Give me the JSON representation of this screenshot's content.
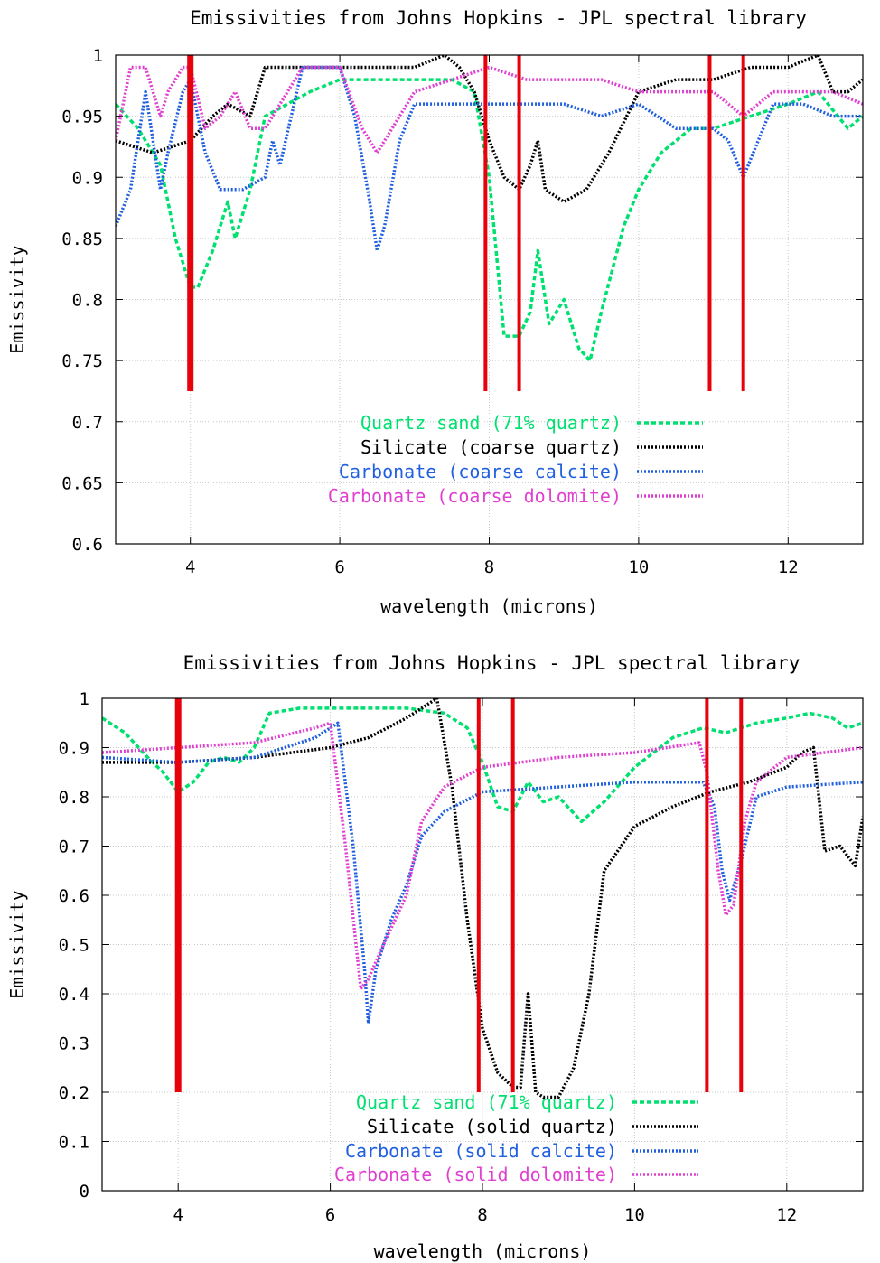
{
  "chart_data": [
    {
      "type": "line",
      "title": "Emissivities from Johns Hopkins - JPL spectral library",
      "xlabel": "wavelength (microns)",
      "ylabel": "Emissivity",
      "xlim": [
        3,
        13
      ],
      "ylim": [
        0.6,
        1.0
      ],
      "xticks": [
        4,
        6,
        8,
        10,
        12
      ],
      "xtick_labels": [
        "4",
        "6",
        "8",
        "10",
        "12"
      ],
      "yticks": [
        0.6,
        0.65,
        0.7,
        0.75,
        0.8,
        0.85,
        0.9,
        0.95,
        1.0
      ],
      "ytick_labels": [
        "0.6",
        "0.65",
        "0.7",
        "0.75",
        "0.8",
        "0.85",
        "0.9",
        "0.95",
        "1"
      ],
      "grid": true,
      "legend_position": "bottom-center",
      "band_markers": {
        "color": "#e8000b",
        "x": [
          4.0,
          7.95,
          8.4,
          10.95,
          11.4
        ],
        "bottom": 0.725,
        "top": 1.0,
        "widths": [
          "thick",
          "thin",
          "thin",
          "thin",
          "thin"
        ]
      },
      "series": [
        {
          "name": "Quartz sand (71% quartz)",
          "color": "#00e070",
          "style": "dashed",
          "x": [
            3.0,
            3.3,
            3.6,
            3.8,
            4.0,
            4.1,
            4.3,
            4.5,
            4.6,
            4.8,
            5.0,
            5.3,
            5.6,
            6.0,
            6.5,
            7.0,
            7.5,
            7.8,
            8.0,
            8.2,
            8.4,
            8.55,
            8.65,
            8.8,
            9.0,
            9.2,
            9.35,
            9.5,
            9.8,
            10.0,
            10.3,
            10.7,
            11.0,
            11.5,
            12.0,
            12.4,
            12.8,
            13.0
          ],
          "y": [
            0.96,
            0.94,
            0.91,
            0.85,
            0.81,
            0.81,
            0.84,
            0.88,
            0.85,
            0.89,
            0.95,
            0.96,
            0.97,
            0.98,
            0.98,
            0.98,
            0.98,
            0.97,
            0.9,
            0.77,
            0.77,
            0.79,
            0.84,
            0.78,
            0.8,
            0.76,
            0.75,
            0.79,
            0.86,
            0.89,
            0.92,
            0.94,
            0.94,
            0.95,
            0.96,
            0.97,
            0.94,
            0.95
          ]
        },
        {
          "name": "Silicate (coarse quartz)",
          "color": "#000000",
          "style": "dotted",
          "x": [
            3.0,
            3.5,
            4.0,
            4.3,
            4.5,
            4.8,
            5.0,
            5.5,
            6.0,
            6.5,
            7.0,
            7.4,
            7.6,
            7.8,
            8.0,
            8.2,
            8.4,
            8.55,
            8.65,
            8.75,
            9.0,
            9.3,
            9.6,
            10.0,
            10.5,
            11.0,
            11.5,
            12.0,
            12.4,
            12.6,
            12.8,
            13.0
          ],
          "y": [
            0.93,
            0.92,
            0.93,
            0.95,
            0.96,
            0.95,
            0.99,
            0.99,
            0.99,
            0.99,
            0.99,
            1.0,
            0.99,
            0.97,
            0.93,
            0.9,
            0.89,
            0.91,
            0.93,
            0.89,
            0.88,
            0.89,
            0.92,
            0.97,
            0.98,
            0.98,
            0.99,
            0.99,
            1.0,
            0.97,
            0.97,
            0.98
          ]
        },
        {
          "name": "Carbonate (coarse calcite)",
          "color": "#2060e0",
          "style": "dotted",
          "x": [
            3.0,
            3.2,
            3.4,
            3.6,
            3.7,
            3.9,
            4.0,
            4.2,
            4.4,
            4.7,
            5.0,
            5.1,
            5.2,
            5.5,
            6.0,
            6.2,
            6.4,
            6.5,
            6.6,
            6.8,
            7.0,
            7.5,
            8.0,
            8.5,
            9.0,
            9.5,
            10.0,
            10.5,
            11.0,
            11.2,
            11.4,
            11.8,
            12.2,
            12.6,
            13.0
          ],
          "y": [
            0.86,
            0.89,
            0.97,
            0.89,
            0.92,
            0.97,
            0.98,
            0.92,
            0.89,
            0.89,
            0.9,
            0.93,
            0.91,
            0.99,
            0.99,
            0.95,
            0.88,
            0.84,
            0.86,
            0.93,
            0.96,
            0.96,
            0.96,
            0.96,
            0.96,
            0.95,
            0.96,
            0.94,
            0.94,
            0.93,
            0.9,
            0.96,
            0.96,
            0.95,
            0.95
          ]
        },
        {
          "name": "Carbonate (coarse dolomite)",
          "color": "#e040d0",
          "style": "dotted",
          "x": [
            3.0,
            3.2,
            3.4,
            3.6,
            3.7,
            3.9,
            4.0,
            4.2,
            4.4,
            4.6,
            4.8,
            5.0,
            5.5,
            6.0,
            6.3,
            6.5,
            6.8,
            7.0,
            7.5,
            8.0,
            8.5,
            9.0,
            9.5,
            10.0,
            10.5,
            11.0,
            11.2,
            11.4,
            11.8,
            12.2,
            12.6,
            13.0
          ],
          "y": [
            0.93,
            0.99,
            0.99,
            0.95,
            0.97,
            0.99,
            0.99,
            0.94,
            0.95,
            0.97,
            0.94,
            0.94,
            0.99,
            0.99,
            0.94,
            0.92,
            0.95,
            0.97,
            0.98,
            0.99,
            0.98,
            0.98,
            0.98,
            0.97,
            0.97,
            0.97,
            0.96,
            0.95,
            0.97,
            0.97,
            0.97,
            0.96
          ]
        }
      ]
    },
    {
      "type": "line",
      "title": "Emissivities from Johns Hopkins - JPL spectral library",
      "xlabel": "wavelength (microns)",
      "ylabel": "Emissivity",
      "xlim": [
        3,
        13
      ],
      "ylim": [
        0,
        1.0
      ],
      "xticks": [
        4,
        6,
        8,
        10,
        12
      ],
      "xtick_labels": [
        "4",
        "6",
        "8",
        "10",
        "12"
      ],
      "yticks": [
        0,
        0.1,
        0.2,
        0.3,
        0.4,
        0.5,
        0.6,
        0.7,
        0.8,
        0.9,
        1.0
      ],
      "ytick_labels": [
        "0",
        "0.1",
        "0.2",
        "0.3",
        "0.4",
        "0.5",
        "0.6",
        "0.7",
        "0.8",
        "0.9",
        "1"
      ],
      "grid": true,
      "legend_position": "bottom-center",
      "band_markers": {
        "color": "#e8000b",
        "x": [
          4.0,
          7.95,
          8.4,
          10.95,
          11.4
        ],
        "bottom": 0.2,
        "top": 1.0,
        "widths": [
          "thick",
          "thin",
          "thin",
          "thin",
          "thin"
        ]
      },
      "series": [
        {
          "name": "Quartz sand (71% quartz)",
          "color": "#00e070",
          "style": "dashed",
          "x": [
            3.0,
            3.3,
            3.6,
            3.8,
            4.0,
            4.2,
            4.4,
            4.6,
            4.8,
            5.0,
            5.2,
            5.6,
            6.0,
            6.5,
            7.0,
            7.5,
            7.8,
            8.0,
            8.2,
            8.4,
            8.6,
            8.8,
            9.0,
            9.3,
            9.6,
            10.0,
            10.5,
            10.9,
            11.2,
            11.6,
            12.0,
            12.3,
            12.6,
            12.8,
            13.0
          ],
          "y": [
            0.96,
            0.93,
            0.88,
            0.85,
            0.81,
            0.83,
            0.87,
            0.88,
            0.87,
            0.9,
            0.97,
            0.98,
            0.98,
            0.98,
            0.98,
            0.97,
            0.94,
            0.87,
            0.78,
            0.77,
            0.83,
            0.79,
            0.8,
            0.75,
            0.79,
            0.86,
            0.92,
            0.94,
            0.93,
            0.95,
            0.96,
            0.97,
            0.96,
            0.94,
            0.95
          ]
        },
        {
          "name": "Silicate (solid quartz)",
          "color": "#000000",
          "style": "dotted",
          "x": [
            3.0,
            4.0,
            5.0,
            6.0,
            6.5,
            7.0,
            7.3,
            7.4,
            7.6,
            7.8,
            8.0,
            8.2,
            8.4,
            8.5,
            8.6,
            8.7,
            8.8,
            9.0,
            9.2,
            9.4,
            9.6,
            10.0,
            10.5,
            11.0,
            11.5,
            12.0,
            12.2,
            12.35,
            12.5,
            12.7,
            12.9,
            13.0
          ],
          "y": [
            0.87,
            0.87,
            0.88,
            0.9,
            0.92,
            0.96,
            0.99,
            1.0,
            0.82,
            0.55,
            0.33,
            0.24,
            0.21,
            0.21,
            0.4,
            0.2,
            0.19,
            0.19,
            0.25,
            0.4,
            0.65,
            0.74,
            0.78,
            0.81,
            0.83,
            0.86,
            0.89,
            0.9,
            0.69,
            0.7,
            0.66,
            0.76
          ]
        },
        {
          "name": "Carbonate (solid calcite)",
          "color": "#2060e0",
          "style": "dotted",
          "x": [
            3.0,
            4.0,
            5.0,
            5.8,
            6.1,
            6.3,
            6.45,
            6.5,
            6.6,
            6.8,
            7.0,
            7.2,
            7.5,
            8.0,
            9.0,
            10.0,
            10.9,
            11.05,
            11.15,
            11.25,
            11.4,
            11.6,
            12.0,
            13.0
          ],
          "y": [
            0.88,
            0.87,
            0.88,
            0.92,
            0.95,
            0.7,
            0.45,
            0.34,
            0.45,
            0.55,
            0.62,
            0.72,
            0.77,
            0.81,
            0.82,
            0.83,
            0.83,
            0.78,
            0.65,
            0.59,
            0.67,
            0.8,
            0.82,
            0.83
          ]
        },
        {
          "name": "Carbonate (solid dolomite)",
          "color": "#e040d0",
          "style": "dotted",
          "x": [
            3.0,
            4.0,
            5.0,
            5.8,
            6.0,
            6.2,
            6.4,
            6.5,
            6.7,
            7.0,
            7.2,
            7.5,
            8.0,
            9.0,
            10.0,
            10.85,
            10.95,
            11.1,
            11.2,
            11.3,
            11.45,
            11.6,
            12.0,
            13.0
          ],
          "y": [
            0.89,
            0.9,
            0.91,
            0.94,
            0.95,
            0.7,
            0.41,
            0.43,
            0.5,
            0.6,
            0.75,
            0.82,
            0.86,
            0.88,
            0.89,
            0.91,
            0.85,
            0.65,
            0.56,
            0.58,
            0.75,
            0.83,
            0.88,
            0.9
          ]
        }
      ]
    }
  ]
}
